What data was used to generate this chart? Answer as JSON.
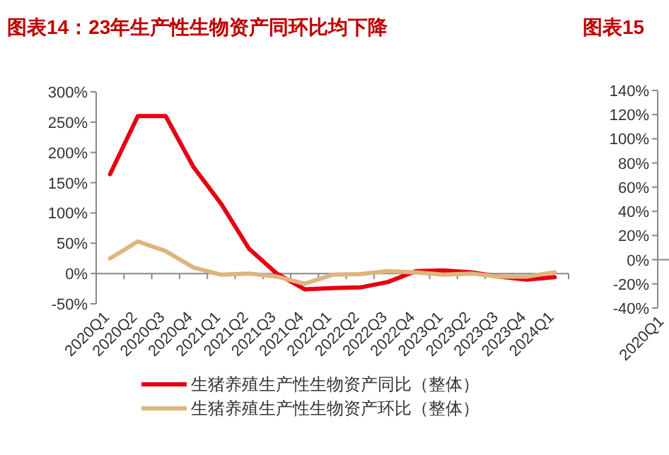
{
  "chart_data": [
    {
      "type": "line",
      "title": "图表14：23年生产性生物资产同环比均下降",
      "categories": [
        "2020Q1",
        "2020Q2",
        "2020Q3",
        "2020Q4",
        "2021Q1",
        "2021Q2",
        "2021Q3",
        "2021Q4",
        "2022Q1",
        "2022Q2",
        "2022Q3",
        "2022Q4",
        "2023Q1",
        "2023Q2",
        "2023Q3",
        "2023Q4",
        "2024Q1"
      ],
      "series": [
        {
          "name": "生猪养殖生产性生物资产同比（整体）",
          "color": "#e60012",
          "values": [
            164,
            260,
            260,
            176,
            115,
            41,
            0,
            -26,
            -24,
            -23,
            -14,
            4,
            5,
            2,
            -5,
            -10,
            -6
          ]
        },
        {
          "name": "生猪养殖生产性生物资产环比（整体）",
          "color": "#deb57f",
          "values": [
            25,
            53,
            37,
            10,
            -2,
            0,
            -5,
            -17,
            -2,
            -1,
            4,
            2,
            -2,
            0,
            -5,
            -5,
            2
          ]
        }
      ],
      "ylim": [
        -50,
        300
      ],
      "yticks": [
        {
          "value": -50,
          "label": "-50%"
        },
        {
          "value": 0,
          "label": "0%"
        },
        {
          "value": 50,
          "label": "50%"
        },
        {
          "value": 100,
          "label": "100%"
        },
        {
          "value": 150,
          "label": "150%"
        },
        {
          "value": 200,
          "label": "200%"
        },
        {
          "value": 250,
          "label": "250%"
        },
        {
          "value": 300,
          "label": "300%"
        }
      ],
      "legend": "bottom"
    },
    {
      "type": "line",
      "title": "图表15",
      "categories": [
        "2020Q1"
      ],
      "ylim": [
        -40,
        140
      ],
      "yticks": [
        {
          "value": -40,
          "label": "-40%"
        },
        {
          "value": -20,
          "label": "-20%"
        },
        {
          "value": 0,
          "label": "0%"
        },
        {
          "value": 20,
          "label": "20%"
        },
        {
          "value": 40,
          "label": "40%"
        },
        {
          "value": 60,
          "label": "60%"
        },
        {
          "value": 80,
          "label": "80%"
        },
        {
          "value": 100,
          "label": "100%"
        },
        {
          "value": 120,
          "label": "120%"
        },
        {
          "value": 140,
          "label": "140%"
        }
      ]
    }
  ]
}
